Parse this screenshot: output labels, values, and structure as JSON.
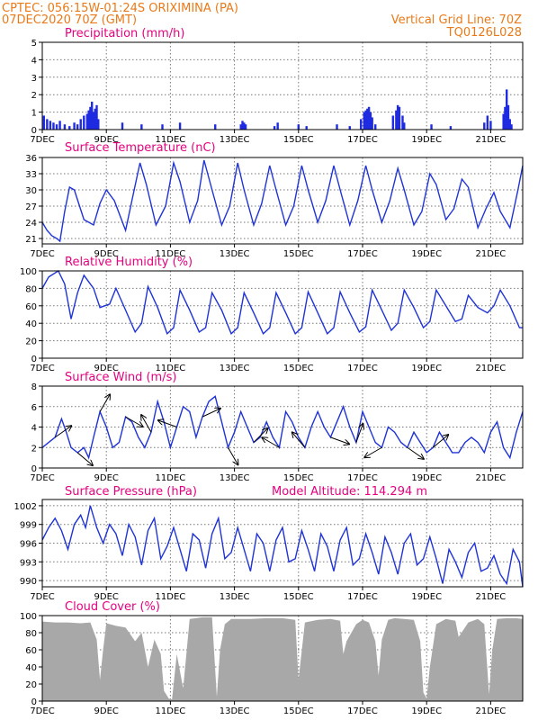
{
  "header": {
    "line1_left": "CPTEC:   056:15W-01:24S   ORIXIMINA (PA)",
    "line2_left": "07DEC2020 70Z (GMT)",
    "line1_right": "Vertical Grid Line: 70Z",
    "line2_right": "TQ0126L028"
  },
  "colors": {
    "header": "#e87a1a",
    "title": "#e6007e",
    "series": "#2033d6",
    "bars": "#1f2be0",
    "cloud": "#a8a8a8",
    "arrow": "#000000"
  },
  "x_axis": {
    "min": 7,
    "max": 22,
    "tick_days": [
      7,
      9,
      11,
      13,
      15,
      17,
      19,
      21
    ],
    "tick_labels": [
      "7DEC",
      "9DEC",
      "11DEC",
      "13DEC",
      "15DEC",
      "17DEC",
      "19DEC",
      "21DEC"
    ]
  },
  "panels": {
    "precip": {
      "title": "Precipitation  (mm/h)"
    },
    "temp": {
      "title": "Surface Temperature (nC)"
    },
    "rh": {
      "title": "Relative Humidity  (%)"
    },
    "wind": {
      "title": "Surface Wind  (m/s)"
    },
    "pres": {
      "title": "Surface Pressure  (hPa)",
      "extra": "Model Altitude: 114.294  m"
    },
    "cloud": {
      "title": "Cloud Cover  (%)"
    }
  },
  "chart_data": [
    {
      "id": "precip",
      "type": "bar",
      "xlabel": "",
      "ylabel": "",
      "ylim": [
        0,
        5
      ],
      "yticks": [
        0,
        1,
        2,
        3,
        4,
        5
      ],
      "grid": true,
      "x": [
        7.05,
        7.15,
        7.25,
        7.35,
        7.45,
        7.55,
        7.7,
        7.85,
        8.0,
        8.1,
        8.2,
        8.3,
        8.4,
        8.45,
        8.5,
        8.55,
        8.6,
        8.65,
        8.7,
        8.75,
        9.5,
        10.1,
        10.75,
        11.3,
        12.4,
        13.2,
        13.25,
        13.3,
        13.35,
        14.25,
        14.35,
        15.0,
        15.25,
        16.2,
        16.6,
        16.95,
        17.05,
        17.1,
        17.15,
        17.2,
        17.25,
        17.3,
        17.4,
        17.95,
        18.05,
        18.1,
        18.15,
        18.25,
        18.3,
        19.15,
        19.75,
        20.8,
        20.9,
        21.0,
        21.4,
        21.45,
        21.5,
        21.55,
        21.6,
        21.65
      ],
      "values": [
        0.8,
        0.6,
        0.5,
        0.4,
        0.3,
        0.5,
        0.3,
        0.2,
        0.4,
        0.3,
        0.6,
        0.8,
        0.9,
        1.1,
        1.3,
        1.6,
        1.0,
        1.2,
        1.4,
        0.6,
        0.4,
        0.3,
        0.3,
        0.4,
        0.3,
        0.3,
        0.5,
        0.4,
        0.3,
        0.2,
        0.4,
        0.3,
        0.2,
        0.3,
        0.2,
        0.6,
        1.0,
        1.1,
        1.2,
        1.3,
        1.0,
        0.7,
        0.3,
        0.8,
        1.1,
        1.4,
        1.3,
        0.8,
        0.4,
        0.3,
        0.2,
        0.4,
        0.8,
        0.5,
        0.9,
        1.3,
        2.3,
        1.4,
        0.6,
        0.3
      ]
    },
    {
      "id": "temp",
      "type": "line",
      "xlabel": "",
      "ylabel": "",
      "ylim": [
        20,
        36
      ],
      "yticks": [
        21,
        24,
        27,
        30,
        33,
        36
      ],
      "grid": true,
      "x": [
        7.0,
        7.15,
        7.3,
        7.45,
        7.55,
        7.7,
        7.85,
        8.0,
        8.3,
        8.6,
        8.8,
        9.0,
        9.25,
        9.6,
        9.85,
        10.05,
        10.25,
        10.55,
        10.85,
        11.1,
        11.3,
        11.6,
        11.85,
        12.05,
        12.3,
        12.6,
        12.85,
        13.1,
        13.3,
        13.6,
        13.85,
        14.1,
        14.3,
        14.6,
        14.85,
        15.1,
        15.3,
        15.6,
        15.85,
        16.1,
        16.3,
        16.6,
        16.85,
        17.1,
        17.3,
        17.6,
        17.85,
        18.1,
        18.3,
        18.6,
        18.85,
        19.1,
        19.3,
        19.6,
        19.85,
        20.1,
        20.3,
        20.6,
        20.85,
        21.1,
        21.3,
        21.6,
        21.85,
        22.0
      ],
      "values": [
        24,
        22.5,
        21.5,
        21,
        20.5,
        26,
        30.5,
        30,
        24.5,
        23.5,
        27.5,
        30,
        28,
        22.5,
        29.5,
        35,
        31,
        23.5,
        27,
        35,
        31.5,
        24,
        28,
        35.5,
        30,
        23.5,
        27,
        35,
        30,
        23.5,
        27.5,
        34.5,
        30,
        23.5,
        27,
        34.5,
        30,
        24,
        28,
        34.5,
        30,
        23.5,
        28,
        34.5,
        30,
        24,
        28,
        34,
        30,
        23.5,
        26,
        33,
        31,
        24.5,
        26.5,
        32,
        30.5,
        23,
        26.5,
        29.5,
        26,
        23,
        30,
        34.5
      ]
    },
    {
      "id": "rh",
      "type": "line",
      "xlabel": "",
      "ylabel": "",
      "ylim": [
        0,
        100
      ],
      "yticks": [
        0,
        20,
        40,
        60,
        80,
        100
      ],
      "grid": true,
      "x": [
        7.0,
        7.2,
        7.5,
        7.7,
        7.9,
        8.1,
        8.3,
        8.6,
        8.8,
        9.1,
        9.3,
        9.6,
        9.9,
        10.1,
        10.3,
        10.6,
        10.9,
        11.1,
        11.3,
        11.6,
        11.9,
        12.1,
        12.3,
        12.6,
        12.9,
        13.1,
        13.3,
        13.6,
        13.9,
        14.1,
        14.3,
        14.6,
        14.9,
        15.1,
        15.3,
        15.6,
        15.9,
        16.1,
        16.3,
        16.6,
        16.9,
        17.1,
        17.3,
        17.6,
        17.9,
        18.1,
        18.3,
        18.6,
        18.9,
        19.1,
        19.3,
        19.6,
        19.9,
        20.1,
        20.3,
        20.6,
        20.9,
        21.1,
        21.3,
        21.6,
        21.9,
        22.0
      ],
      "values": [
        80,
        93,
        100,
        85,
        45,
        75,
        95,
        80,
        58,
        62,
        80,
        55,
        30,
        40,
        82,
        58,
        28,
        35,
        78,
        55,
        30,
        35,
        75,
        55,
        28,
        35,
        75,
        52,
        28,
        35,
        75,
        52,
        28,
        35,
        76,
        52,
        28,
        35,
        76,
        52,
        30,
        36,
        78,
        55,
        32,
        40,
        78,
        58,
        35,
        42,
        78,
        60,
        42,
        45,
        72,
        58,
        52,
        60,
        78,
        60,
        35,
        35
      ]
    },
    {
      "id": "wind",
      "type": "line",
      "xlabel": "",
      "ylabel": "",
      "ylim": [
        0,
        8
      ],
      "yticks": [
        0,
        2,
        4,
        6,
        8
      ],
      "grid": true,
      "x": [
        7.0,
        7.2,
        7.4,
        7.6,
        7.75,
        7.9,
        8.1,
        8.3,
        8.45,
        8.6,
        8.8,
        9.0,
        9.2,
        9.4,
        9.6,
        9.8,
        10.0,
        10.2,
        10.4,
        10.6,
        10.8,
        11.0,
        11.2,
        11.4,
        11.6,
        11.8,
        12.0,
        12.2,
        12.4,
        12.6,
        12.8,
        13.0,
        13.2,
        13.4,
        13.6,
        13.8,
        14.0,
        14.2,
        14.4,
        14.6,
        14.8,
        15.0,
        15.2,
        15.4,
        15.6,
        15.8,
        16.0,
        16.2,
        16.4,
        16.6,
        16.8,
        17.0,
        17.2,
        17.4,
        17.6,
        17.8,
        18.0,
        18.2,
        18.4,
        18.6,
        18.8,
        19.0,
        19.2,
        19.4,
        19.6,
        19.8,
        20.0,
        20.2,
        20.4,
        20.6,
        20.8,
        21.0,
        21.2,
        21.4,
        21.6,
        21.8,
        22.0
      ],
      "values": [
        2.0,
        2.5,
        3.0,
        4.8,
        3.5,
        2.0,
        1.5,
        2.0,
        1.0,
        3.0,
        5.5,
        4.0,
        2.0,
        2.5,
        5.0,
        4.5,
        3.0,
        2.0,
        3.5,
        6.5,
        4.5,
        2.0,
        4.0,
        6.0,
        5.5,
        3.0,
        5.0,
        6.5,
        7.0,
        4.5,
        2.0,
        3.5,
        5.5,
        4.0,
        2.5,
        3.0,
        4.5,
        3.0,
        2.0,
        5.5,
        4.5,
        3.0,
        2.0,
        4.0,
        5.5,
        4.0,
        3.0,
        4.5,
        6.0,
        4.0,
        2.5,
        5.5,
        4.0,
        2.5,
        2.0,
        4.0,
        3.5,
        2.5,
        2.0,
        3.5,
        2.5,
        1.5,
        2.0,
        3.5,
        2.5,
        1.5,
        1.5,
        2.5,
        3.0,
        2.5,
        1.5,
        3.5,
        4.5,
        2.0,
        1.0,
        3.5,
        5.5
      ]
    },
    {
      "id": "pres",
      "type": "line",
      "xlabel": "",
      "ylabel": "",
      "ylim": [
        989,
        1003
      ],
      "yticks": [
        990,
        993,
        996,
        999,
        1002
      ],
      "grid": true,
      "x": [
        7.0,
        7.2,
        7.4,
        7.6,
        7.8,
        8.0,
        8.2,
        8.35,
        8.5,
        8.7,
        8.9,
        9.1,
        9.3,
        9.5,
        9.7,
        9.9,
        10.1,
        10.3,
        10.5,
        10.7,
        10.9,
        11.1,
        11.3,
        11.5,
        11.7,
        11.9,
        12.1,
        12.3,
        12.5,
        12.7,
        12.9,
        13.1,
        13.3,
        13.5,
        13.7,
        13.9,
        14.1,
        14.3,
        14.5,
        14.7,
        14.9,
        15.1,
        15.3,
        15.5,
        15.7,
        15.9,
        16.1,
        16.3,
        16.5,
        16.7,
        16.9,
        17.1,
        17.3,
        17.5,
        17.7,
        17.9,
        18.1,
        18.3,
        18.5,
        18.7,
        18.9,
        19.1,
        19.3,
        19.5,
        19.7,
        19.9,
        20.1,
        20.3,
        20.5,
        20.7,
        20.9,
        21.1,
        21.3,
        21.5,
        21.7,
        21.9,
        22.0
      ],
      "values": [
        996.5,
        998.5,
        1000,
        998,
        995,
        999,
        1000.5,
        998.5,
        1002,
        998.5,
        996,
        999,
        997.5,
        994,
        999,
        997,
        992.5,
        998,
        1000,
        993.5,
        995.5,
        998.5,
        995,
        991.5,
        997.5,
        996.5,
        992,
        997.5,
        1000,
        993.5,
        994.5,
        998.5,
        995,
        991.5,
        997.5,
        996,
        991.5,
        996.5,
        998.5,
        993,
        993.5,
        998,
        995,
        991.5,
        997.5,
        995.5,
        991.5,
        996.5,
        998.5,
        992.5,
        993.5,
        997.5,
        994.5,
        991,
        997,
        994.5,
        991,
        996,
        997.5,
        992.5,
        993.5,
        997,
        993.5,
        989.5,
        995,
        993,
        990.5,
        994.5,
        996,
        991.5,
        992,
        994,
        991,
        989.5,
        995,
        993,
        989
      ]
    },
    {
      "id": "cloud",
      "type": "area",
      "xlabel": "",
      "ylabel": "",
      "ylim": [
        0,
        100
      ],
      "yticks": [
        0,
        20,
        40,
        60,
        80,
        100
      ],
      "grid": true,
      "x": [
        7.0,
        7.4,
        7.8,
        8.2,
        8.5,
        8.7,
        8.8,
        8.9,
        9.0,
        9.3,
        9.6,
        9.9,
        10.1,
        10.3,
        10.5,
        10.7,
        10.8,
        10.95,
        11.05,
        11.2,
        11.4,
        11.6,
        12.0,
        12.3,
        12.45,
        12.55,
        12.7,
        12.9,
        13.1,
        13.5,
        14.0,
        14.5,
        14.9,
        15.0,
        15.2,
        15.6,
        16.0,
        16.3,
        16.4,
        16.5,
        16.8,
        17.0,
        17.2,
        17.4,
        17.5,
        17.6,
        17.8,
        18.0,
        18.3,
        18.6,
        18.8,
        18.9,
        19.0,
        19.1,
        19.3,
        19.6,
        19.9,
        20.0,
        20.3,
        20.6,
        20.8,
        20.95,
        21.05,
        21.2,
        21.5,
        21.8,
        22.0
      ],
      "values": [
        93,
        92,
        92,
        91,
        92,
        72,
        25,
        60,
        91,
        88,
        86,
        70,
        80,
        40,
        72,
        55,
        12,
        3,
        2,
        55,
        15,
        96,
        98,
        98,
        5,
        60,
        90,
        96,
        96,
        96,
        97,
        97,
        95,
        25,
        92,
        95,
        96,
        94,
        55,
        70,
        90,
        95,
        92,
        70,
        30,
        72,
        95,
        97,
        96,
        95,
        70,
        10,
        3,
        40,
        90,
        96,
        94,
        75,
        92,
        96,
        90,
        8,
        60,
        96,
        97,
        97,
        96
      ]
    }
  ]
}
